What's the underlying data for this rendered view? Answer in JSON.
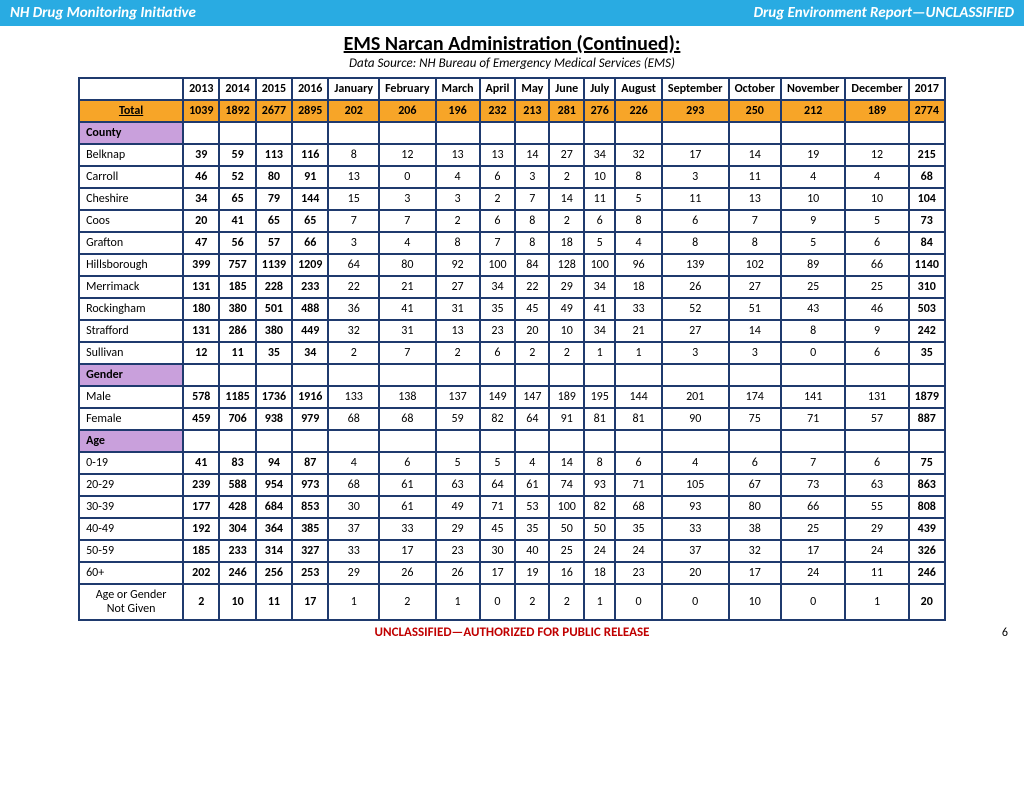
{
  "header": {
    "left": "NH Drug Monitoring Initiative",
    "right": "Drug Environment Report—UNCLASSIFIED"
  },
  "title": "EMS Narcan Administration (Continued):",
  "subtitle": "Data Source: NH Bureau of Emergency Medical Services (EMS)",
  "columns": [
    "",
    "2013",
    "2014",
    "2015",
    "2016",
    "January",
    "February",
    "March",
    "April",
    "May",
    "June",
    "July",
    "August",
    "September",
    "October",
    "November",
    "December",
    "2017"
  ],
  "boldCols": [
    1,
    2,
    3,
    4,
    17
  ],
  "totalRow": [
    "Total",
    "1039",
    "1892",
    "2677",
    "2895",
    "202",
    "206",
    "196",
    "232",
    "213",
    "281",
    "276",
    "226",
    "293",
    "250",
    "212",
    "189",
    "2774"
  ],
  "sections": [
    {
      "label": "County",
      "rows": [
        [
          "Belknap",
          "39",
          "59",
          "113",
          "116",
          "8",
          "12",
          "13",
          "13",
          "14",
          "27",
          "34",
          "32",
          "17",
          "14",
          "19",
          "12",
          "215"
        ],
        [
          "Carroll",
          "46",
          "52",
          "80",
          "91",
          "13",
          "0",
          "4",
          "6",
          "3",
          "2",
          "10",
          "8",
          "3",
          "11",
          "4",
          "4",
          "68"
        ],
        [
          "Cheshire",
          "34",
          "65",
          "79",
          "144",
          "15",
          "3",
          "3",
          "2",
          "7",
          "14",
          "11",
          "5",
          "11",
          "13",
          "10",
          "10",
          "104"
        ],
        [
          "Coos",
          "20",
          "41",
          "65",
          "65",
          "7",
          "7",
          "2",
          "6",
          "8",
          "2",
          "6",
          "8",
          "6",
          "7",
          "9",
          "5",
          "73"
        ],
        [
          "Grafton",
          "47",
          "56",
          "57",
          "66",
          "3",
          "4",
          "8",
          "7",
          "8",
          "18",
          "5",
          "4",
          "8",
          "8",
          "5",
          "6",
          "84"
        ],
        [
          "Hillsborough",
          "399",
          "757",
          "1139",
          "1209",
          "64",
          "80",
          "92",
          "100",
          "84",
          "128",
          "100",
          "96",
          "139",
          "102",
          "89",
          "66",
          "1140"
        ],
        [
          "Merrimack",
          "131",
          "185",
          "228",
          "233",
          "22",
          "21",
          "27",
          "34",
          "22",
          "29",
          "34",
          "18",
          "26",
          "27",
          "25",
          "25",
          "310"
        ],
        [
          "Rockingham",
          "180",
          "380",
          "501",
          "488",
          "36",
          "41",
          "31",
          "35",
          "45",
          "49",
          "41",
          "33",
          "52",
          "51",
          "43",
          "46",
          "503"
        ],
        [
          "Strafford",
          "131",
          "286",
          "380",
          "449",
          "32",
          "31",
          "13",
          "23",
          "20",
          "10",
          "34",
          "21",
          "27",
          "14",
          "8",
          "9",
          "242"
        ],
        [
          "Sullivan",
          "12",
          "11",
          "35",
          "34",
          "2",
          "7",
          "2",
          "6",
          "2",
          "2",
          "1",
          "1",
          "3",
          "3",
          "0",
          "6",
          "35"
        ]
      ]
    },
    {
      "label": "Gender",
      "rows": [
        [
          "Male",
          "578",
          "1185",
          "1736",
          "1916",
          "133",
          "138",
          "137",
          "149",
          "147",
          "189",
          "195",
          "144",
          "201",
          "174",
          "141",
          "131",
          "1879"
        ],
        [
          "Female",
          "459",
          "706",
          "938",
          "979",
          "68",
          "68",
          "59",
          "82",
          "64",
          "91",
          "81",
          "81",
          "90",
          "75",
          "71",
          "57",
          "887"
        ]
      ]
    },
    {
      "label": "Age",
      "rows": [
        [
          "0-19",
          "41",
          "83",
          "94",
          "87",
          "4",
          "6",
          "5",
          "5",
          "4",
          "14",
          "8",
          "6",
          "4",
          "6",
          "7",
          "6",
          "75"
        ],
        [
          "20-29",
          "239",
          "588",
          "954",
          "973",
          "68",
          "61",
          "63",
          "64",
          "61",
          "74",
          "93",
          "71",
          "105",
          "67",
          "73",
          "63",
          "863"
        ],
        [
          "30-39",
          "177",
          "428",
          "684",
          "853",
          "30",
          "61",
          "49",
          "71",
          "53",
          "100",
          "82",
          "68",
          "93",
          "80",
          "66",
          "55",
          "808"
        ],
        [
          "40-49",
          "192",
          "304",
          "364",
          "385",
          "37",
          "33",
          "29",
          "45",
          "35",
          "50",
          "50",
          "35",
          "33",
          "38",
          "25",
          "29",
          "439"
        ],
        [
          "50-59",
          "185",
          "233",
          "314",
          "327",
          "33",
          "17",
          "23",
          "30",
          "40",
          "25",
          "24",
          "24",
          "37",
          "32",
          "17",
          "24",
          "326"
        ],
        [
          "60+",
          "202",
          "246",
          "256",
          "253",
          "29",
          "26",
          "26",
          "17",
          "19",
          "16",
          "18",
          "23",
          "20",
          "17",
          "24",
          "11",
          "246"
        ]
      ]
    }
  ],
  "lastRow": [
    "Age or Gender Not Given",
    "2",
    "10",
    "11",
    "17",
    "1",
    "2",
    "1",
    "0",
    "2",
    "2",
    "1",
    "0",
    "0",
    "10",
    "0",
    "1",
    "20"
  ],
  "footer": "UNCLASSIFIED—AUTHORIZED FOR PUBLIC RELEASE",
  "pageNum": "6",
  "colors": {
    "headerBar": "#29abe2",
    "border": "#1f3a6e",
    "totalRow": "#f7a528",
    "sectionHeader": "#c9a0dc",
    "footerText": "#c00000"
  }
}
